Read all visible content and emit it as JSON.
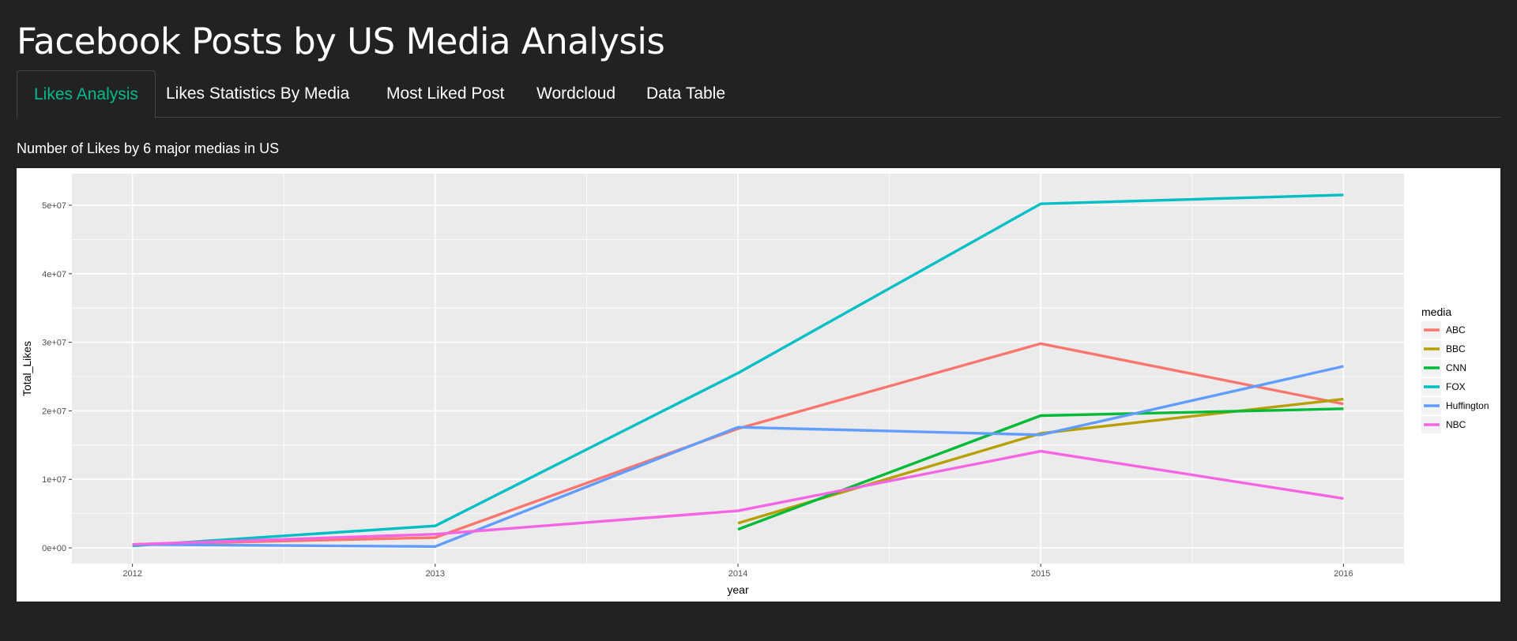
{
  "app": {
    "title": "Facebook Posts by US Media Analysis"
  },
  "tabs": [
    {
      "label": "Likes Analysis",
      "active": true
    },
    {
      "label": "Likes Statistics By Media",
      "active": false
    },
    {
      "label": "Most Liked Post",
      "active": false
    },
    {
      "label": "Wordcloud",
      "active": false
    },
    {
      "label": "Data Table",
      "active": false
    }
  ],
  "colors": {
    "accent": "#00bc8c",
    "background": "#222222",
    "panel_background": "#ebebeb"
  },
  "chart_heading": "Number of Likes by 6 major medias in US",
  "chart_data": {
    "type": "line",
    "xlabel": "year",
    "ylabel": "Total_Likes",
    "xlim": [
      2011.8,
      2016.2
    ],
    "ylim": [
      -2300000,
      54600000
    ],
    "x_ticks": [
      2012,
      2013,
      2014,
      2015,
      2016
    ],
    "y_ticks": [
      0,
      10000000,
      20000000,
      30000000,
      40000000,
      50000000
    ],
    "y_tick_labels": [
      "0e+00",
      "1e+07",
      "2e+07",
      "3e+07",
      "4e+07",
      "5e+07"
    ],
    "grid": true,
    "legend_title": "media",
    "legend_position": "right",
    "series": [
      {
        "name": "ABC",
        "color": "#F8766D",
        "x": [
          2012,
          2013,
          2014,
          2015,
          2016
        ],
        "values": [
          500000,
          1500000,
          17400000,
          29800000,
          21000000
        ]
      },
      {
        "name": "BBC",
        "color": "#B79F00",
        "x": [
          2014,
          2015,
          2016
        ],
        "values": [
          3600000,
          16700000,
          21700000
        ]
      },
      {
        "name": "CNN",
        "color": "#00BA38",
        "x": [
          2014,
          2015,
          2016
        ],
        "values": [
          2700000,
          19300000,
          20300000
        ]
      },
      {
        "name": "FOX",
        "color": "#00BFC4",
        "x": [
          2012,
          2013,
          2014,
          2015,
          2016
        ],
        "values": [
          300000,
          3200000,
          25500000,
          50200000,
          51500000
        ]
      },
      {
        "name": "Huffington",
        "color": "#619CFF",
        "x": [
          2012,
          2013,
          2014,
          2015,
          2016
        ],
        "values": [
          500000,
          200000,
          17600000,
          16500000,
          26500000
        ]
      },
      {
        "name": "NBC",
        "color": "#F564E3",
        "x": [
          2012,
          2013,
          2014,
          2015,
          2016
        ],
        "values": [
          500000,
          2000000,
          5400000,
          14100000,
          7200000
        ]
      }
    ]
  }
}
